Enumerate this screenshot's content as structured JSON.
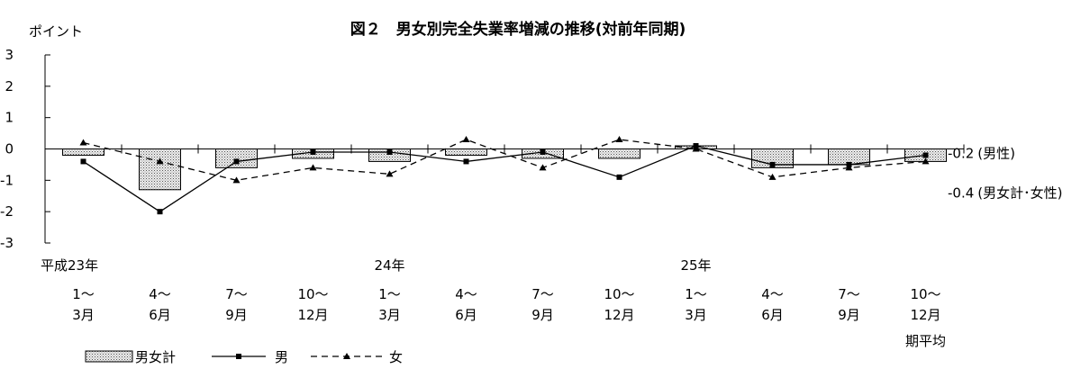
{
  "chart_data": {
    "type": "bar",
    "title": "図２　男女別完全失業率増減の推移(対前年同期)",
    "ylabel": "ポイント",
    "ylim": [
      -3,
      3
    ],
    "yticks": [
      3,
      2,
      1,
      0,
      -1,
      -2,
      -3
    ],
    "grid": false,
    "categories": [
      {
        "year": "平成23年",
        "line1": "1～",
        "line2": "3月"
      },
      {
        "year": "",
        "line1": "4～",
        "line2": "6月"
      },
      {
        "year": "",
        "line1": "7～",
        "line2": "9月"
      },
      {
        "year": "",
        "line1": "10～",
        "line2": "12月"
      },
      {
        "year": "24年",
        "line1": "1～",
        "line2": "3月"
      },
      {
        "year": "",
        "line1": "4～",
        "line2": "6月"
      },
      {
        "year": "",
        "line1": "7～",
        "line2": "9月"
      },
      {
        "year": "",
        "line1": "10～",
        "line2": "12月"
      },
      {
        "year": "25年",
        "line1": "1～",
        "line2": "3月"
      },
      {
        "year": "",
        "line1": "4～",
        "line2": "6月"
      },
      {
        "year": "",
        "line1": "7～",
        "line2": "9月"
      },
      {
        "year": "",
        "line1": "10～",
        "line2": "12月"
      }
    ],
    "extra_label": "期平均",
    "series": [
      {
        "name": "男女計",
        "kind": "bar",
        "values": [
          -0.2,
          -1.3,
          -0.6,
          -0.3,
          -0.4,
          -0.2,
          -0.3,
          -0.3,
          0.1,
          -0.6,
          -0.5,
          -0.4
        ]
      },
      {
        "name": "男",
        "kind": "line-solid",
        "values": [
          -0.4,
          -2.0,
          -0.4,
          -0.1,
          -0.1,
          -0.4,
          -0.1,
          -0.9,
          0.1,
          -0.5,
          -0.5,
          -0.2
        ]
      },
      {
        "name": "女",
        "kind": "line-dashed",
        "values": [
          0.2,
          -0.4,
          -1.0,
          -0.6,
          -0.8,
          0.3,
          -0.6,
          0.3,
          0.0,
          -0.9,
          -0.6,
          -0.4
        ]
      }
    ],
    "annotations": [
      {
        "value": "-0.2",
        "text": "(男性)"
      },
      {
        "value": "-0.4",
        "text": "(男女計･女性)"
      }
    ],
    "legend_position": "bottom-left",
    "colors": {
      "bar_fill": "#d9d9d9",
      "line": "#000000"
    }
  }
}
